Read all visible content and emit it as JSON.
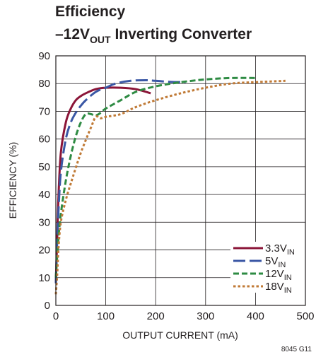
{
  "chart_data": {
    "type": "line",
    "title": {
      "line1": "Efficiency",
      "line2_prefix": "–12V",
      "line2_sub": "OUT",
      "line2_suffix": " Inverting Converter"
    },
    "xlabel": "OUTPUT CURRENT (mA)",
    "ylabel": "EFFICIENCY (%)",
    "xlim": [
      0,
      500
    ],
    "ylim": [
      0,
      90
    ],
    "xticks": [
      0,
      100,
      200,
      300,
      400,
      500
    ],
    "yticks": [
      0,
      10,
      20,
      30,
      40,
      50,
      60,
      70,
      80,
      90
    ],
    "grid": true,
    "legend_position": "bottom-right",
    "figure_id": "8045 G11",
    "series": [
      {
        "name": "3.3V",
        "name_sub": "IN",
        "color": "#8b1538",
        "dash": "solid",
        "x": [
          0,
          2,
          5,
          10,
          20,
          30,
          40,
          50,
          60,
          80,
          100,
          130,
          160,
          190
        ],
        "y": [
          8,
          20,
          38,
          55,
          66,
          71,
          74,
          75.5,
          76.5,
          78,
          78.5,
          78.5,
          78,
          76.5
        ]
      },
      {
        "name": "5V",
        "name_sub": "IN",
        "color": "#3a57a5",
        "dash": "long",
        "x": [
          0,
          2,
          5,
          10,
          20,
          30,
          40,
          50,
          60,
          80,
          100,
          120,
          150,
          180,
          200,
          230,
          260
        ],
        "y": [
          8,
          20,
          33,
          48,
          60,
          66,
          69.5,
          72,
          74,
          77,
          78.5,
          80,
          81,
          81.2,
          81,
          80.6,
          80.5
        ]
      },
      {
        "name": "12V",
        "name_sub": "IN",
        "color": "#2e8b43",
        "dash": "medium",
        "x": [
          0,
          2,
          5,
          10,
          20,
          30,
          40,
          50,
          60,
          70,
          80,
          90,
          100,
          130,
          160,
          200,
          250,
          300,
          350,
          400
        ],
        "y": [
          10,
          16,
          24,
          33,
          45,
          54,
          61,
          66,
          69,
          69,
          68.5,
          69.5,
          71,
          74,
          77,
          79,
          80.5,
          81.5,
          82,
          82
        ]
      },
      {
        "name": "18V",
        "name_sub": "IN",
        "color": "#c07a36",
        "dash": "dot",
        "x": [
          0,
          3,
          5,
          10,
          20,
          30,
          50,
          70,
          80,
          90,
          100,
          130,
          160,
          200,
          250,
          300,
          350,
          400,
          460
        ],
        "y": [
          4,
          12,
          20,
          30,
          38,
          44,
          55,
          64,
          68,
          67.5,
          68,
          69,
          71.5,
          74,
          76.5,
          78.5,
          80,
          80.5,
          81
        ]
      }
    ]
  }
}
